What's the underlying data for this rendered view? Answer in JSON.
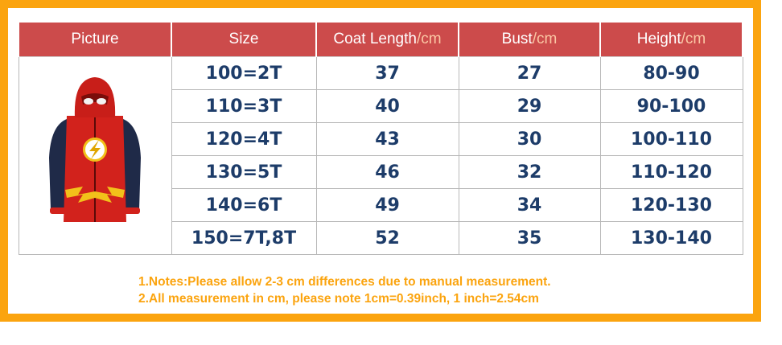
{
  "header": {
    "picture": "Picture",
    "size": "Size",
    "coat_length": "Coat Length",
    "bust": "Bust",
    "height": "Height",
    "unit": "/cm"
  },
  "rows": [
    {
      "size": "100=2T",
      "coat": "37",
      "bust": "27",
      "height": "80-90"
    },
    {
      "size": "110=3T",
      "coat": "40",
      "bust": "29",
      "height": "90-100"
    },
    {
      "size": "120=4T",
      "coat": "43",
      "bust": "30",
      "height": "100-110"
    },
    {
      "size": "130=5T",
      "coat": "46",
      "bust": "32",
      "height": "110-120"
    },
    {
      "size": "140=6T",
      "coat": "49",
      "bust": "34",
      "height": "120-130"
    },
    {
      "size": "150=7T,8T",
      "coat": "52",
      "bust": "35",
      "height": "130-140"
    }
  ],
  "notes": {
    "line1": "1.Notes:Please allow 2-3 cm differences due to manual measurement.",
    "line2": "2.All measurement in cm, please note 1cm=0.39inch, 1 inch=2.54cm"
  },
  "colors": {
    "frame": "#fba40f",
    "header_bg": "#cc4b4b",
    "cell_text": "#1d3c69",
    "hoodie_red": "#d2221c",
    "hoodie_sleeve": "#1f2a48",
    "bolt_gold": "#f2c11a"
  },
  "icons": {
    "product": "hoodie-illustration"
  }
}
